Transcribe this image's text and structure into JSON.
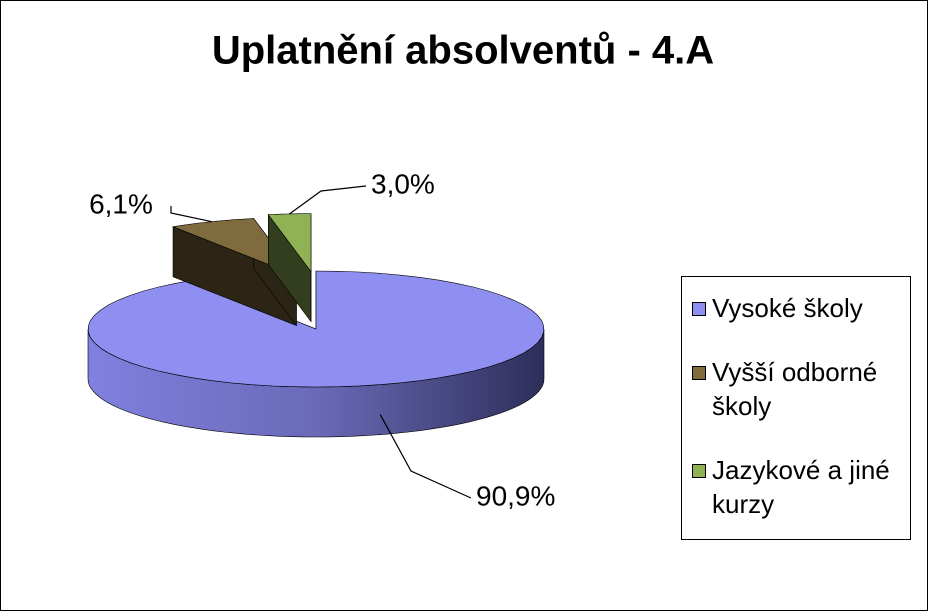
{
  "chart_data": {
    "type": "pie",
    "title": "Uplatnění absolventů - 4.A",
    "categories": [
      "Vysoké školy",
      "Vyšší odborné školy",
      "Jazykové a jiné kurzy"
    ],
    "values": [
      90.9,
      6.1,
      3.0
    ],
    "value_labels": [
      "90,9%",
      "6,1%",
      "3,0%"
    ],
    "colors": [
      "#8e8ff0",
      "#7f6b3e",
      "#8fb254"
    ],
    "legend": "right"
  }
}
